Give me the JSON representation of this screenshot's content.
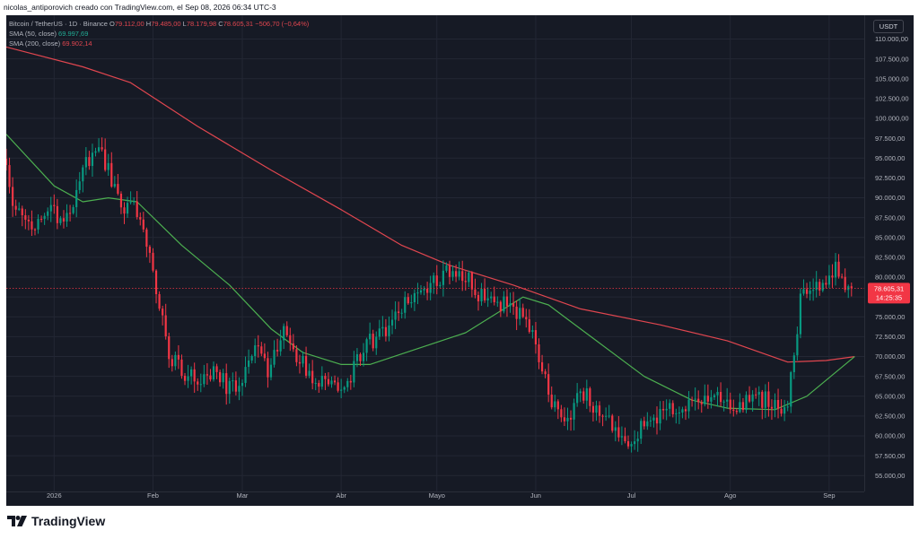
{
  "attribution": "nicolas_antiporovich creado con TradingView.com, el Sep 08, 2026 06:34 UTC-3",
  "legend": {
    "symbol": "Bitcoin / TetherUS · 1D · Binance",
    "o_label": "O",
    "o_value": "79.112,00",
    "h_label": "H",
    "h_value": "79.485,00",
    "l_label": "L",
    "l_value": "78.179,98",
    "c_label": "C",
    "c_value": "78.605,31",
    "change": "−506,70 (−0,64%)",
    "sma50_label": "SMA (50, close)",
    "sma50_value": "69.997,69",
    "sma200_label": "SMA (200, close)",
    "sma200_value": "69.902,14"
  },
  "currency_button": "USDT",
  "price_label": "78.605,31",
  "countdown_label": "14:25:35",
  "logo_text": "TradingView",
  "colors": {
    "background": "#161a25",
    "up": "#089981",
    "down": "#f23645",
    "sma50": "#4caf50",
    "sma200": "#e0464f",
    "grid": "#232734",
    "axis_text": "#b2b5be"
  },
  "chart_data": {
    "type": "candlestick",
    "title": "Bitcoin / TetherUS · 1D · Binance",
    "ylim": [
      53000,
      113000
    ],
    "x_start": "2025-12-17",
    "x_end": "2026-09-12",
    "grid": true,
    "y_ticks": [
      "55.000,00",
      "57.500,00",
      "60.000,00",
      "62.500,00",
      "65.000,00",
      "67.500,00",
      "70.000,00",
      "72.500,00",
      "75.000,00",
      "77.500,00",
      "80.000,00",
      "82.500,00",
      "85.000,00",
      "87.500,00",
      "90.000,00",
      "92.500,00",
      "95.000,00",
      "97.500,00",
      "100.000,00",
      "102.500,00",
      "105.000,00",
      "107.500,00",
      "110.000,00"
    ],
    "x_ticks": [
      {
        "label": "2026",
        "date": "2026-01-01"
      },
      {
        "label": "Feb",
        "date": "2026-02-01"
      },
      {
        "label": "Mar",
        "date": "2026-03-01"
      },
      {
        "label": "Abr",
        "date": "2026-04-01"
      },
      {
        "label": "Mayo",
        "date": "2026-05-01"
      },
      {
        "label": "Jun",
        "date": "2026-06-01"
      },
      {
        "label": "Jul",
        "date": "2026-07-01"
      },
      {
        "label": "Ago",
        "date": "2026-08-01"
      },
      {
        "label": "Sep",
        "date": "2026-09-01"
      }
    ],
    "close_anchors": [
      [
        "2025-12-17",
        93000
      ],
      [
        "2025-12-20",
        88000
      ],
      [
        "2025-12-26",
        86000
      ],
      [
        "2025-12-30",
        88500
      ],
      [
        "2026-01-04",
        87500
      ],
      [
        "2026-01-08",
        90500
      ],
      [
        "2026-01-11",
        94500
      ],
      [
        "2026-01-15",
        96500
      ],
      [
        "2026-01-18",
        93500
      ],
      [
        "2026-01-22",
        88000
      ],
      [
        "2026-01-25",
        89500
      ],
      [
        "2026-01-28",
        87500
      ],
      [
        "2026-01-31",
        82000
      ],
      [
        "2026-02-03",
        77000
      ],
      [
        "2026-02-06",
        70000
      ],
      [
        "2026-02-09",
        68500
      ],
      [
        "2026-02-14",
        67500
      ],
      [
        "2026-02-20",
        68000
      ],
      [
        "2026-02-25",
        66000
      ],
      [
        "2026-03-01",
        67000
      ],
      [
        "2026-03-05",
        71500
      ],
      [
        "2026-03-09",
        68500
      ],
      [
        "2026-03-14",
        73500
      ],
      [
        "2026-03-18",
        70000
      ],
      [
        "2026-03-23",
        67500
      ],
      [
        "2026-03-28",
        66500
      ],
      [
        "2026-04-03",
        67000
      ],
      [
        "2026-04-09",
        71500
      ],
      [
        "2026-04-15",
        73500
      ],
      [
        "2026-04-20",
        76500
      ],
      [
        "2026-04-25",
        77500
      ],
      [
        "2026-04-30",
        79500
      ],
      [
        "2026-05-05",
        81000
      ],
      [
        "2026-05-10",
        80500
      ],
      [
        "2026-05-15",
        77500
      ],
      [
        "2026-05-20",
        77000
      ],
      [
        "2026-05-25",
        76000
      ],
      [
        "2026-05-29",
        75000
      ],
      [
        "2026-06-02",
        70000
      ],
      [
        "2026-06-06",
        63500
      ],
      [
        "2026-06-11",
        62500
      ],
      [
        "2026-06-16",
        65500
      ],
      [
        "2026-06-20",
        63500
      ],
      [
        "2026-06-25",
        61000
      ],
      [
        "2026-06-30",
        59500
      ],
      [
        "2026-07-05",
        61500
      ],
      [
        "2026-07-10",
        63000
      ],
      [
        "2026-07-15",
        63800
      ],
      [
        "2026-07-20",
        64500
      ],
      [
        "2026-07-25",
        65000
      ],
      [
        "2026-07-31",
        64000
      ],
      [
        "2026-08-06",
        64000
      ],
      [
        "2026-08-12",
        64800
      ],
      [
        "2026-08-17",
        63500
      ],
      [
        "2026-08-19",
        64800
      ],
      [
        "2026-08-21",
        70000
      ],
      [
        "2026-08-23",
        77500
      ],
      [
        "2026-08-27",
        79500
      ],
      [
        "2026-08-31",
        79000
      ],
      [
        "2026-09-03",
        81000
      ],
      [
        "2026-09-06",
        79500
      ],
      [
        "2026-09-08",
        78605
      ]
    ],
    "sma50_points": [
      [
        "2025-12-17",
        98000
      ],
      [
        "2026-01-01",
        91500
      ],
      [
        "2026-01-10",
        89500
      ],
      [
        "2026-01-18",
        90000
      ],
      [
        "2026-01-27",
        89500
      ],
      [
        "2026-02-10",
        84000
      ],
      [
        "2026-02-25",
        79000
      ],
      [
        "2026-03-10",
        73500
      ],
      [
        "2026-03-20",
        70500
      ],
      [
        "2026-04-01",
        69000
      ],
      [
        "2026-04-10",
        69000
      ],
      [
        "2026-04-25",
        71000
      ],
      [
        "2026-05-10",
        73000
      ],
      [
        "2026-05-20",
        75500
      ],
      [
        "2026-05-28",
        77500
      ],
      [
        "2026-06-05",
        76500
      ],
      [
        "2026-06-20",
        72000
      ],
      [
        "2026-07-05",
        67500
      ],
      [
        "2026-07-20",
        64500
      ],
      [
        "2026-07-31",
        63500
      ],
      [
        "2026-08-15",
        63300
      ],
      [
        "2026-08-25",
        65000
      ],
      [
        "2026-09-09",
        70000
      ]
    ],
    "sma200_points": [
      [
        "2025-12-17",
        109000
      ],
      [
        "2026-01-10",
        106500
      ],
      [
        "2026-01-25",
        104500
      ],
      [
        "2026-02-15",
        99000
      ],
      [
        "2026-03-10",
        93500
      ],
      [
        "2026-04-01",
        88500
      ],
      [
        "2026-04-20",
        84000
      ],
      [
        "2026-05-05",
        81500
      ],
      [
        "2026-05-25",
        79000
      ],
      [
        "2026-06-15",
        76000
      ],
      [
        "2026-07-10",
        74000
      ],
      [
        "2026-07-31",
        72000
      ],
      [
        "2026-08-19",
        69300
      ],
      [
        "2026-08-31",
        69500
      ],
      [
        "2026-09-09",
        70000
      ]
    ],
    "current_price": 78605.31
  }
}
